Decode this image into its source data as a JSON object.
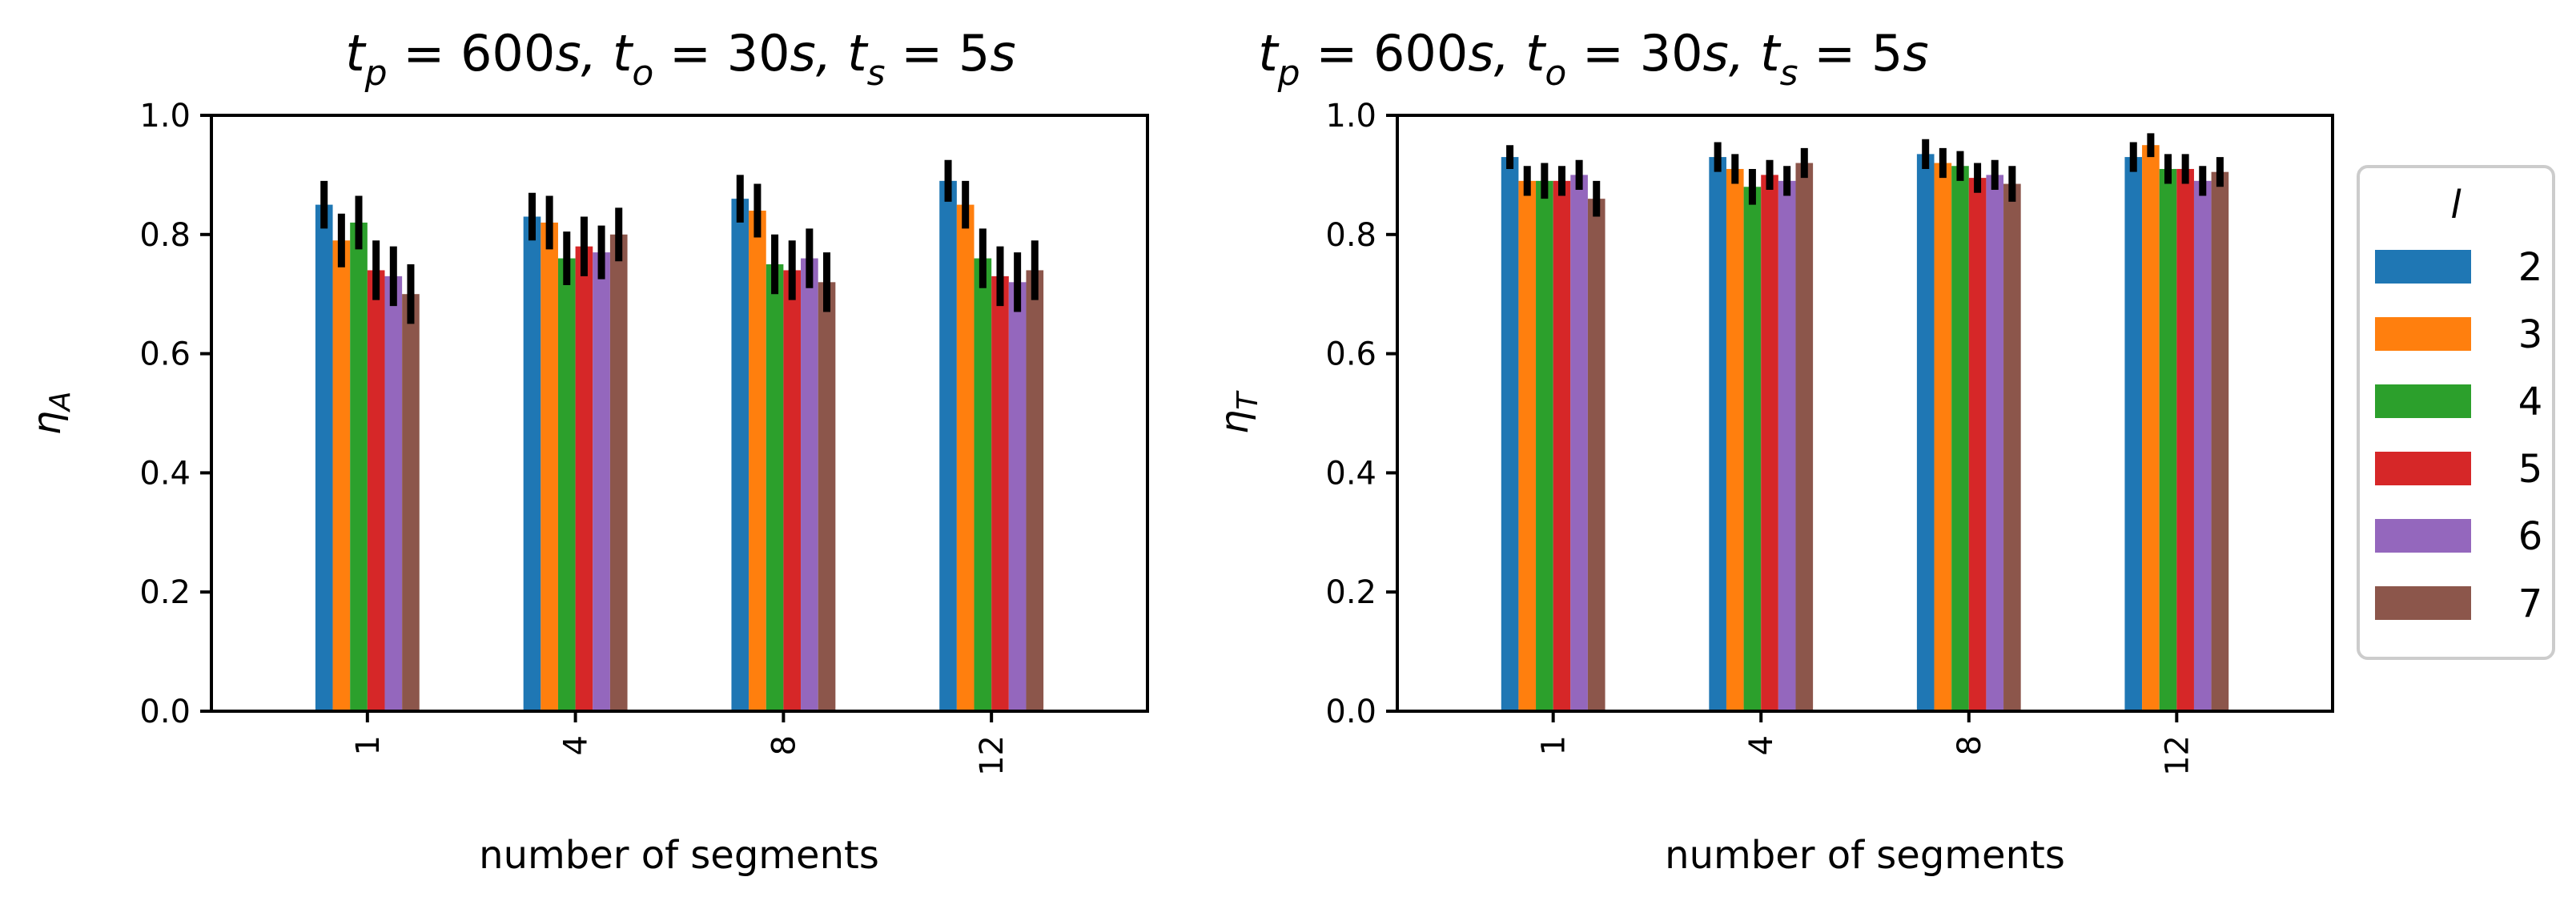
{
  "chart_data": [
    {
      "type": "bar",
      "title": "t_p = 600s, t_o = 30s, t_s = 5s",
      "title_parts": {
        "a": "t",
        "a_sub": "p",
        "b": " = 600",
        "c": "s, ",
        "d": "t",
        "d_sub": "o",
        "e": " = 30",
        "f": "s, ",
        "g": "t",
        "g_sub": "s",
        "h": " = 5",
        "i": "s"
      },
      "xlabel": "number of segments",
      "ylabel": "η_A",
      "ylabel_parts": {
        "symbol": "η",
        "sub": "A"
      },
      "categories": [
        "1",
        "4",
        "8",
        "12"
      ],
      "ylim": [
        0.0,
        1.0
      ],
      "yticks": [
        "0.0",
        "0.2",
        "0.4",
        "0.6",
        "0.8",
        "1.0"
      ],
      "series": [
        {
          "name": "2",
          "values": [
            0.85,
            0.83,
            0.86,
            0.89
          ],
          "err": [
            0.04,
            0.04,
            0.04,
            0.035
          ]
        },
        {
          "name": "3",
          "values": [
            0.79,
            0.82,
            0.84,
            0.85
          ],
          "err": [
            0.045,
            0.045,
            0.045,
            0.04
          ]
        },
        {
          "name": "4",
          "values": [
            0.82,
            0.76,
            0.75,
            0.76
          ],
          "err": [
            0.045,
            0.045,
            0.05,
            0.05
          ]
        },
        {
          "name": "5",
          "values": [
            0.74,
            0.78,
            0.74,
            0.73
          ],
          "err": [
            0.05,
            0.05,
            0.05,
            0.05
          ]
        },
        {
          "name": "6",
          "values": [
            0.73,
            0.77,
            0.76,
            0.72
          ],
          "err": [
            0.05,
            0.045,
            0.05,
            0.05
          ]
        },
        {
          "name": "7",
          "values": [
            0.7,
            0.8,
            0.72,
            0.74
          ],
          "err": [
            0.05,
            0.045,
            0.05,
            0.05
          ]
        }
      ]
    },
    {
      "type": "bar",
      "title": "t_p = 600s, t_o = 30s, t_s = 5s",
      "title_parts": {
        "a": "t",
        "a_sub": "p",
        "b": " = 600",
        "c": "s, ",
        "d": "t",
        "d_sub": "o",
        "e": " = 30",
        "f": "s, ",
        "g": "t",
        "g_sub": "s",
        "h": " = 5",
        "i": "s"
      },
      "xlabel": "number of segments",
      "ylabel": "η_T",
      "ylabel_parts": {
        "symbol": "η",
        "sub": "T"
      },
      "categories": [
        "1",
        "4",
        "8",
        "12"
      ],
      "ylim": [
        0.0,
        1.0
      ],
      "yticks": [
        "0.0",
        "0.2",
        "0.4",
        "0.6",
        "0.8",
        "1.0"
      ],
      "series": [
        {
          "name": "2",
          "values": [
            0.93,
            0.93,
            0.935,
            0.93
          ],
          "err": [
            0.02,
            0.025,
            0.025,
            0.025
          ]
        },
        {
          "name": "3",
          "values": [
            0.89,
            0.91,
            0.92,
            0.95
          ],
          "err": [
            0.025,
            0.025,
            0.025,
            0.02
          ]
        },
        {
          "name": "4",
          "values": [
            0.89,
            0.88,
            0.915,
            0.91
          ],
          "err": [
            0.03,
            0.03,
            0.025,
            0.025
          ]
        },
        {
          "name": "5",
          "values": [
            0.89,
            0.9,
            0.895,
            0.91
          ],
          "err": [
            0.025,
            0.025,
            0.025,
            0.025
          ]
        },
        {
          "name": "6",
          "values": [
            0.9,
            0.89,
            0.9,
            0.89
          ],
          "err": [
            0.025,
            0.025,
            0.025,
            0.025
          ]
        },
        {
          "name": "7",
          "values": [
            0.86,
            0.92,
            0.885,
            0.905
          ],
          "err": [
            0.03,
            0.025,
            0.03,
            0.025
          ]
        }
      ]
    }
  ],
  "legend": {
    "title": "l",
    "placement": "right",
    "entries": [
      "2",
      "3",
      "4",
      "5",
      "6",
      "7"
    ]
  },
  "colors": [
    "#1f77b4",
    "#ff7f0e",
    "#2ca02c",
    "#d62728",
    "#9467bd",
    "#8c564b"
  ],
  "error_color": "#000000"
}
